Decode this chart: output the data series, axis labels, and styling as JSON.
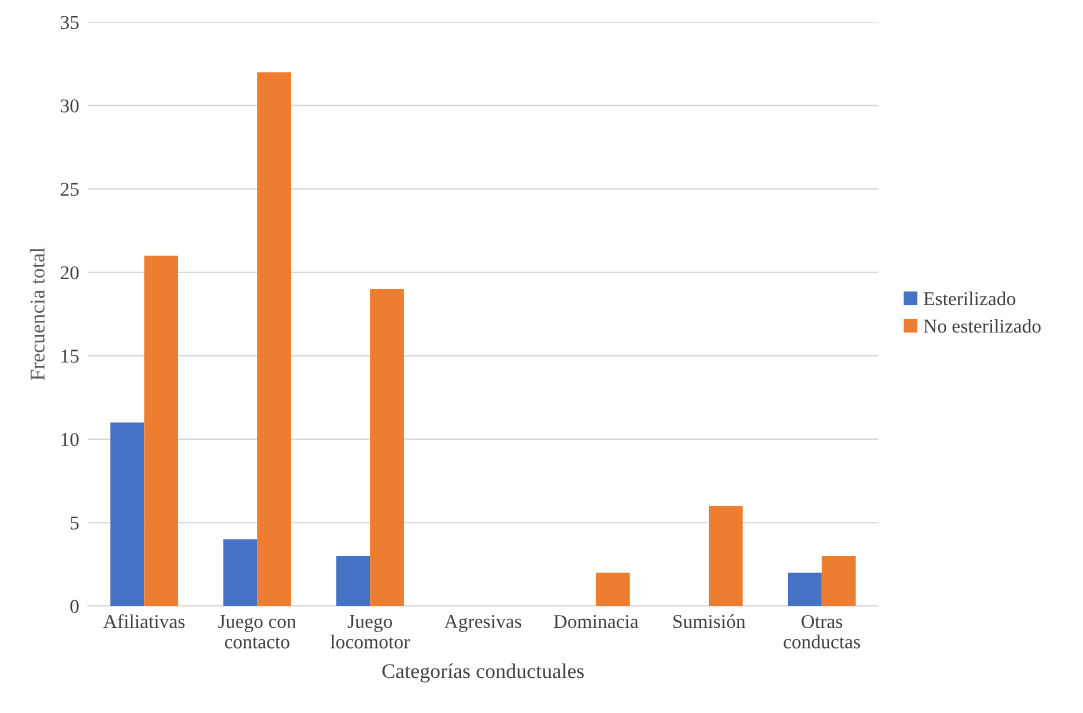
{
  "chart_data": {
    "type": "bar",
    "xlabel": "Categorías conductuales",
    "ylabel": "Frecuencia total",
    "categories": [
      "Afiliativas",
      "Juego con\ncontacto",
      "Juego\nlocomotor",
      "Agresivas",
      "Dominacia",
      "Sumisión",
      "Otras\nconductas"
    ],
    "series": [
      {
        "name": "Esterilizado",
        "color": "#4472c4",
        "values": [
          11,
          4,
          3,
          0,
          0,
          0,
          2
        ]
      },
      {
        "name": "No esterilizado",
        "color": "#ed7d31",
        "values": [
          21,
          32,
          19,
          0,
          2,
          6,
          3
        ]
      }
    ],
    "ylim": [
      0,
      35
    ],
    "yticks": [
      0,
      5,
      10,
      15,
      20,
      25,
      30,
      35
    ],
    "grid": "y",
    "legend": "right"
  }
}
